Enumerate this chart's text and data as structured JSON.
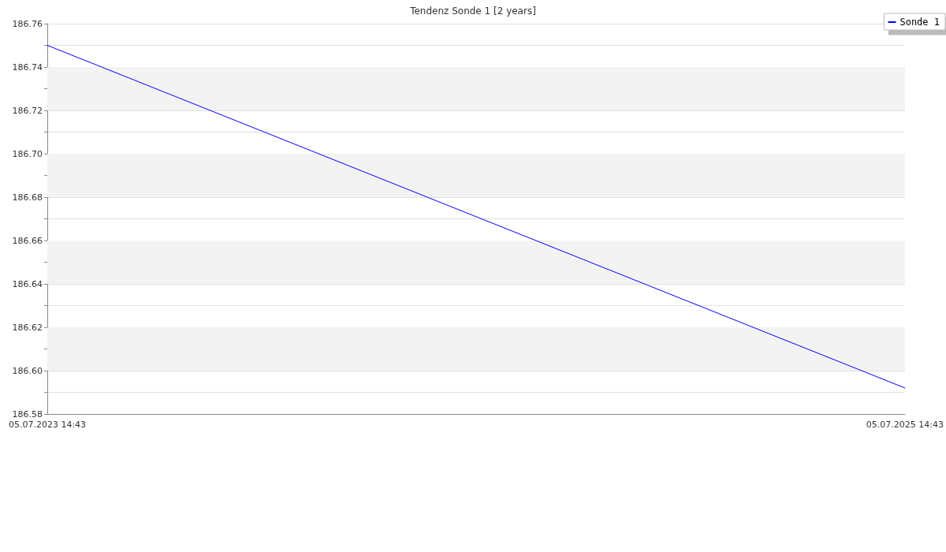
{
  "chart_data": {
    "type": "line",
    "title": "Tendenz Sonde 1 [2 years]",
    "x": [
      "2023-07-05T14:43",
      "2025-07-05T14:43"
    ],
    "series": [
      {
        "name": "Sonde 1",
        "color": "#0000ff",
        "values": [
          186.75,
          186.592
        ]
      }
    ],
    "xlim": [
      "2023-07-05T14:43",
      "2025-07-05T14:43"
    ],
    "xticks": [
      {
        "value": "2023-07-05T14:43",
        "label": "05.07.2023 14:43"
      },
      {
        "value": "2025-07-05T14:43",
        "label": "05.07.2025 14:43"
      }
    ],
    "ylim": [
      186.58,
      186.76
    ],
    "yticks": [
      {
        "value": 186.58,
        "label": "186.58"
      },
      {
        "value": 186.59,
        "label": null
      },
      {
        "value": 186.6,
        "label": "186.60"
      },
      {
        "value": 186.61,
        "label": null
      },
      {
        "value": 186.62,
        "label": "186.62"
      },
      {
        "value": 186.63,
        "label": null
      },
      {
        "value": 186.64,
        "label": "186.64"
      },
      {
        "value": 186.65,
        "label": null
      },
      {
        "value": 186.66,
        "label": "186.66"
      },
      {
        "value": 186.67,
        "label": null
      },
      {
        "value": 186.68,
        "label": "186.68"
      },
      {
        "value": 186.69,
        "label": null
      },
      {
        "value": 186.7,
        "label": "186.70"
      },
      {
        "value": 186.71,
        "label": null
      },
      {
        "value": 186.72,
        "label": "186.72"
      },
      {
        "value": 186.73,
        "label": null
      },
      {
        "value": 186.74,
        "label": "186.74"
      },
      {
        "value": 186.75,
        "label": null
      },
      {
        "value": 186.76,
        "label": "186.76"
      }
    ],
    "bands": [
      {
        "axis": "y",
        "from": 186.6,
        "to": 186.62,
        "color": "#f3f3f3"
      },
      {
        "axis": "y",
        "from": 186.64,
        "to": 186.66,
        "color": "#f3f3f3"
      },
      {
        "axis": "y",
        "from": 186.68,
        "to": 186.7,
        "color": "#f3f3f3"
      },
      {
        "axis": "y",
        "from": 186.72,
        "to": 186.74,
        "color": "#f3f3f3"
      }
    ],
    "grid": "y",
    "legend": "top right",
    "marker": "none",
    "line_style": "solid"
  }
}
